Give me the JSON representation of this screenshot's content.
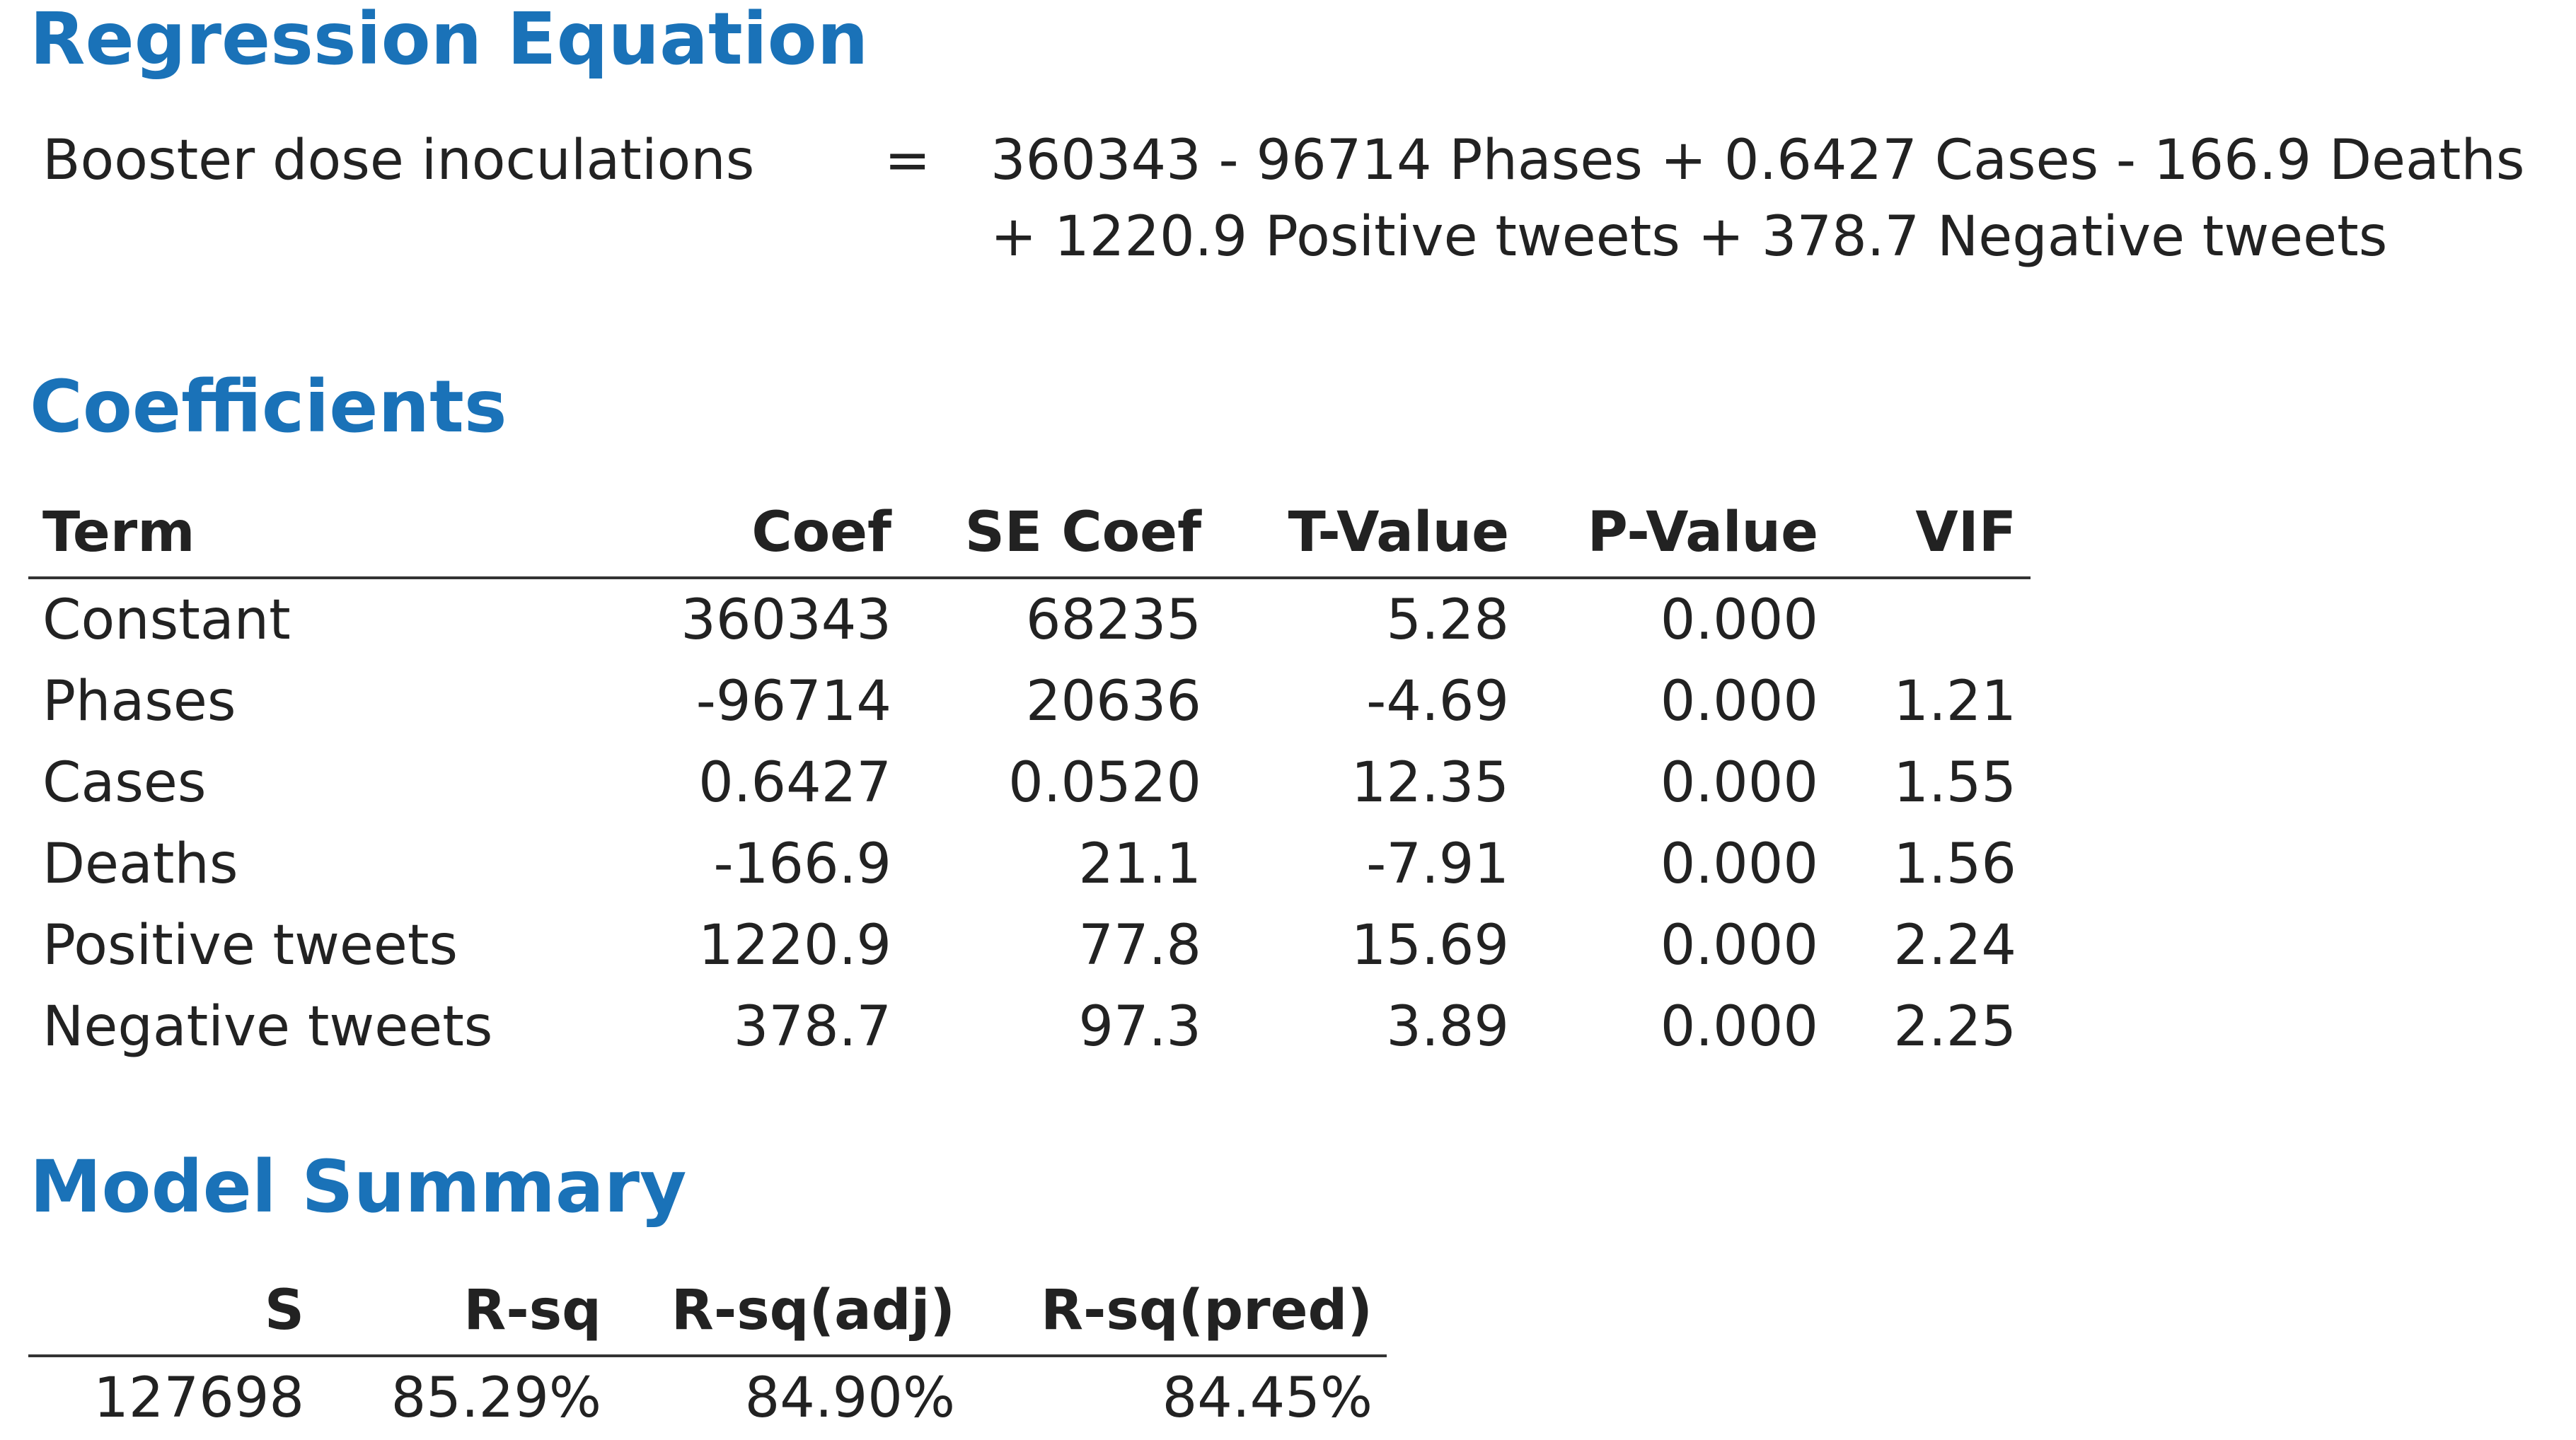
{
  "regression": {
    "heading": "Regression Equation",
    "lhs": "Booster dose inoculations",
    "equals": "=",
    "rhs_line1": "360343 - 96714 Phases + 0.6427 Cases - 166.9 Deaths",
    "rhs_line2": "+ 1220.9 Positive tweets + 378.7 Negative tweets"
  },
  "coefficients": {
    "heading": "Coefficients",
    "columns": [
      "Term",
      "Coef",
      "SE Coef",
      "T-Value",
      "P-Value",
      "VIF"
    ],
    "rows": [
      [
        "Constant",
        "360343",
        "68235",
        "5.28",
        "0.000",
        ""
      ],
      [
        "Phases",
        "-96714",
        "20636",
        "-4.69",
        "0.000",
        "1.21"
      ],
      [
        "Cases",
        "0.6427",
        "0.0520",
        "12.35",
        "0.000",
        "1.55"
      ],
      [
        "Deaths",
        "-166.9",
        "21.1",
        "-7.91",
        "0.000",
        "1.56"
      ],
      [
        "Positive tweets",
        "1220.9",
        "77.8",
        "15.69",
        "0.000",
        "2.24"
      ],
      [
        "Negative tweets",
        "378.7",
        "97.3",
        "3.89",
        "0.000",
        "2.25"
      ]
    ]
  },
  "model_summary": {
    "heading": "Model Summary",
    "columns": [
      "S",
      "R-sq",
      "R-sq(adj)",
      "R-sq(pred)"
    ],
    "rows": [
      [
        "127698",
        "85.29%",
        "84.90%",
        "84.45%"
      ]
    ]
  },
  "colors": {
    "heading": "#1a72b8",
    "text": "#222222",
    "rule": "#333333"
  }
}
